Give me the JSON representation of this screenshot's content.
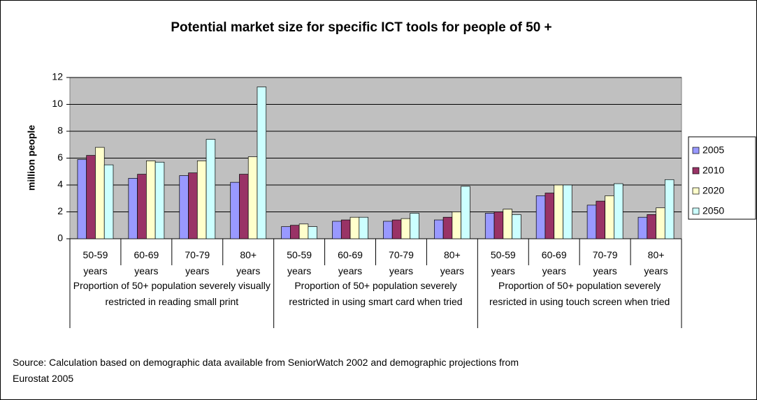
{
  "chart_data": {
    "type": "bar",
    "title": "Potential market size for specific ICT tools for people of 50 +",
    "ylabel": "million people",
    "source": "Source: Calculation based on demographic data available from SeniorWatch 2002 and demographic projections from Eurostat 2005",
    "groups": [
      {
        "name": "Proportion of 50+ population severely visually restricted in reading small print",
        "categories": [
          "50-59 years",
          "60-69 years",
          "70-79 years",
          "80+ years"
        ]
      },
      {
        "name": "Proportion of 50+ population severely restricted in using smart card when tried",
        "categories": [
          "50-59 years",
          "60-69 years",
          "70-79 years",
          "80+ years"
        ]
      },
      {
        "name": "Proportion of 50+ population severely resricted in using touch screen when tried",
        "categories": [
          "50-59 years",
          "60-69 years",
          "70-79 years",
          "80+ years"
        ]
      }
    ],
    "series": [
      {
        "name": "2005",
        "color": "#9999ff",
        "values": [
          5.9,
          4.5,
          4.7,
          4.2,
          0.9,
          1.3,
          1.3,
          1.4,
          1.9,
          3.2,
          2.5,
          1.6
        ]
      },
      {
        "name": "2010",
        "color": "#993366",
        "values": [
          6.2,
          4.8,
          4.9,
          4.8,
          1.0,
          1.4,
          1.4,
          1.6,
          2.0,
          3.4,
          2.8,
          1.8
        ]
      },
      {
        "name": "2020",
        "color": "#ffffcc",
        "values": [
          6.8,
          5.8,
          5.8,
          6.1,
          1.1,
          1.6,
          1.5,
          2.0,
          2.2,
          4.0,
          3.2,
          2.3
        ]
      },
      {
        "name": "2050",
        "color": "#ccffff",
        "values": [
          5.5,
          5.7,
          7.4,
          11.3,
          0.9,
          1.6,
          1.9,
          3.9,
          1.8,
          4.0,
          4.1,
          4.4
        ]
      }
    ],
    "ylim": [
      0,
      12
    ],
    "yticks": [
      0,
      2,
      4,
      6,
      8,
      10,
      12
    ],
    "grid": true,
    "plot_background": "#c0c0c0",
    "legend": "right"
  }
}
